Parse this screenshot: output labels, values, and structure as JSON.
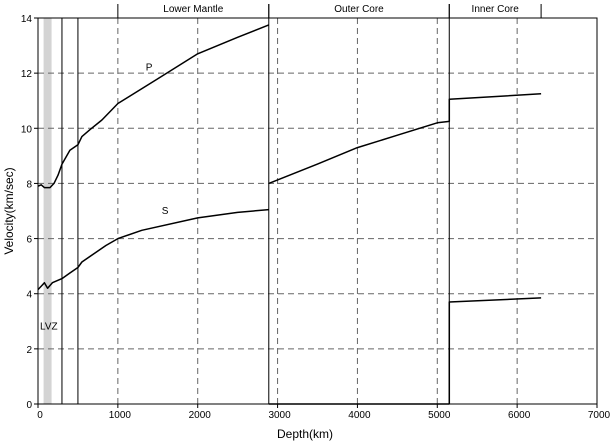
{
  "chart_data": {
    "type": "line",
    "title": "",
    "xlabel": "Depth(km)",
    "ylabel": "Velocity(km/sec)",
    "xlim": [
      0,
      7000
    ],
    "ylim": [
      0,
      14
    ],
    "x_ticks": [
      0,
      1000,
      2000,
      3000,
      4000,
      5000,
      6000,
      7000
    ],
    "y_ticks": [
      0,
      2,
      4,
      6,
      8,
      10,
      12,
      14
    ],
    "x_tick_labels": [
      "0",
      "1000",
      "2000",
      "3000",
      "4000",
      "5000",
      "6000",
      "7000"
    ],
    "y_tick_labels": [
      "0",
      "2",
      "4",
      "6",
      "8",
      "10",
      "12",
      "14"
    ],
    "grid": true,
    "series": [
      {
        "name": "P",
        "segments": [
          [
            [
              0,
              7.9
            ],
            [
              40,
              7.95
            ],
            [
              80,
              7.85
            ],
            [
              150,
              7.85
            ],
            [
              200,
              8.0
            ],
            [
              250,
              8.3
            ],
            [
              300,
              8.7
            ],
            [
              400,
              9.2
            ],
            [
              500,
              9.4
            ],
            [
              550,
              9.7
            ],
            [
              650,
              9.95
            ],
            [
              800,
              10.3
            ],
            [
              1000,
              10.9
            ],
            [
              1500,
              11.8
            ],
            [
              2000,
              12.7
            ],
            [
              2500,
              13.3
            ],
            [
              2890,
              13.75
            ]
          ],
          [
            [
              2890,
              8.0
            ],
            [
              3500,
              8.7
            ],
            [
              4000,
              9.3
            ],
            [
              4500,
              9.75
            ],
            [
              5000,
              10.2
            ],
            [
              5150,
              10.25
            ],
            [
              5150,
              11.05
            ],
            [
              6300,
              11.25
            ]
          ]
        ]
      },
      {
        "name": "S",
        "segments": [
          [
            [
              0,
              4.15
            ],
            [
              50,
              4.3
            ],
            [
              80,
              4.4
            ],
            [
              120,
              4.2
            ],
            [
              180,
              4.4
            ],
            [
              300,
              4.55
            ],
            [
              400,
              4.75
            ],
            [
              500,
              4.95
            ],
            [
              550,
              5.15
            ],
            [
              700,
              5.45
            ],
            [
              850,
              5.75
            ],
            [
              1000,
              6.0
            ],
            [
              1300,
              6.3
            ],
            [
              2000,
              6.75
            ],
            [
              2500,
              6.95
            ],
            [
              2890,
              7.05
            ]
          ],
          [
            [
              2890,
              0.0
            ],
            [
              5150,
              0.0
            ]
          ],
          [
            [
              5150,
              0.0
            ],
            [
              5150,
              3.7
            ],
            [
              6300,
              3.85
            ]
          ]
        ]
      }
    ],
    "vertical_lines": [
      {
        "x": 0,
        "style": "solid"
      },
      {
        "x": 300,
        "style": "solid"
      },
      {
        "x": 500,
        "style": "solid"
      },
      {
        "x": 2890,
        "style": "solid"
      },
      {
        "x": 5150,
        "style": "solid"
      }
    ],
    "shaded_band": {
      "x0": 70,
      "x1": 170,
      "label": "LVZ",
      "label_y": 2.85
    },
    "top_regions": [
      {
        "label": "Lower Mantle",
        "x0": 1000,
        "x1": 2890
      },
      {
        "label": "Outer Core",
        "x0": 2890,
        "x1": 5150
      },
      {
        "label": "Inner Core",
        "x0": 5150,
        "x1": 6300
      }
    ],
    "annotations": [
      {
        "text": "P",
        "x": 1350,
        "y": 12.1
      },
      {
        "text": "S",
        "x": 1550,
        "y": 6.9
      }
    ]
  }
}
